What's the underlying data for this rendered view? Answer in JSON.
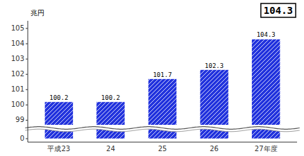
{
  "chart_data": {
    "type": "bar",
    "ylabel": "兆円",
    "annotation": "104.3",
    "categories": [
      "平成23",
      "24",
      "25",
      "26",
      "27年度"
    ],
    "values": [
      100.2,
      100.2,
      101.7,
      102.3,
      104.3
    ],
    "color": "#2233dd",
    "data_labels": true,
    "ylim": [
      98.7,
      105.5
    ],
    "yticks": [
      99,
      100,
      101,
      102,
      103,
      104,
      105
    ],
    "axis_break": {
      "ylim": [
        -0.5,
        2.0
      ],
      "yticks": [
        0
      ]
    },
    "grid": false
  }
}
